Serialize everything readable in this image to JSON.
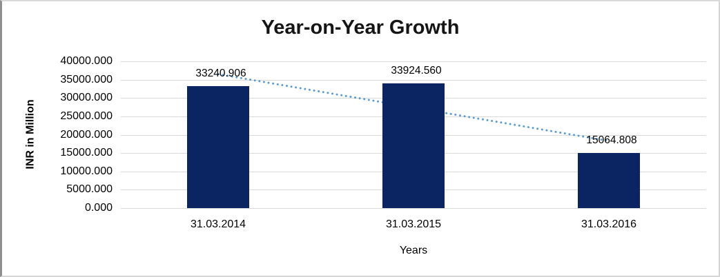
{
  "chart_data": {
    "type": "bar",
    "title": "Year-on-Year Growth",
    "xlabel": "Years",
    "ylabel": "INR in Million",
    "categories": [
      "31.03.2014",
      "31.03.2015",
      "31.03.2016"
    ],
    "values": [
      33240.906,
      33924.56,
      15064.808
    ],
    "data_labels": [
      "33240.906",
      "33924.560",
      "15064.808"
    ],
    "yticks": [
      0,
      5000,
      10000,
      15000,
      20000,
      25000,
      30000,
      35000,
      40000
    ],
    "ytick_labels": [
      "0.000",
      "5000.000",
      "10000.000",
      "15000.000",
      "20000.000",
      "25000.000",
      "30000.000",
      "35000.000",
      "40000.000"
    ],
    "ylim": [
      0,
      40000
    ],
    "grid": "horizontal",
    "legend": "none",
    "trendline": {
      "type": "linear",
      "style": "dotted-round",
      "color": "#5B9BD5"
    },
    "colors": {
      "bar": "#0A2562",
      "gridline": "#D9D9D9",
      "text": "#000000",
      "background": "#FFFFFF"
    }
  }
}
